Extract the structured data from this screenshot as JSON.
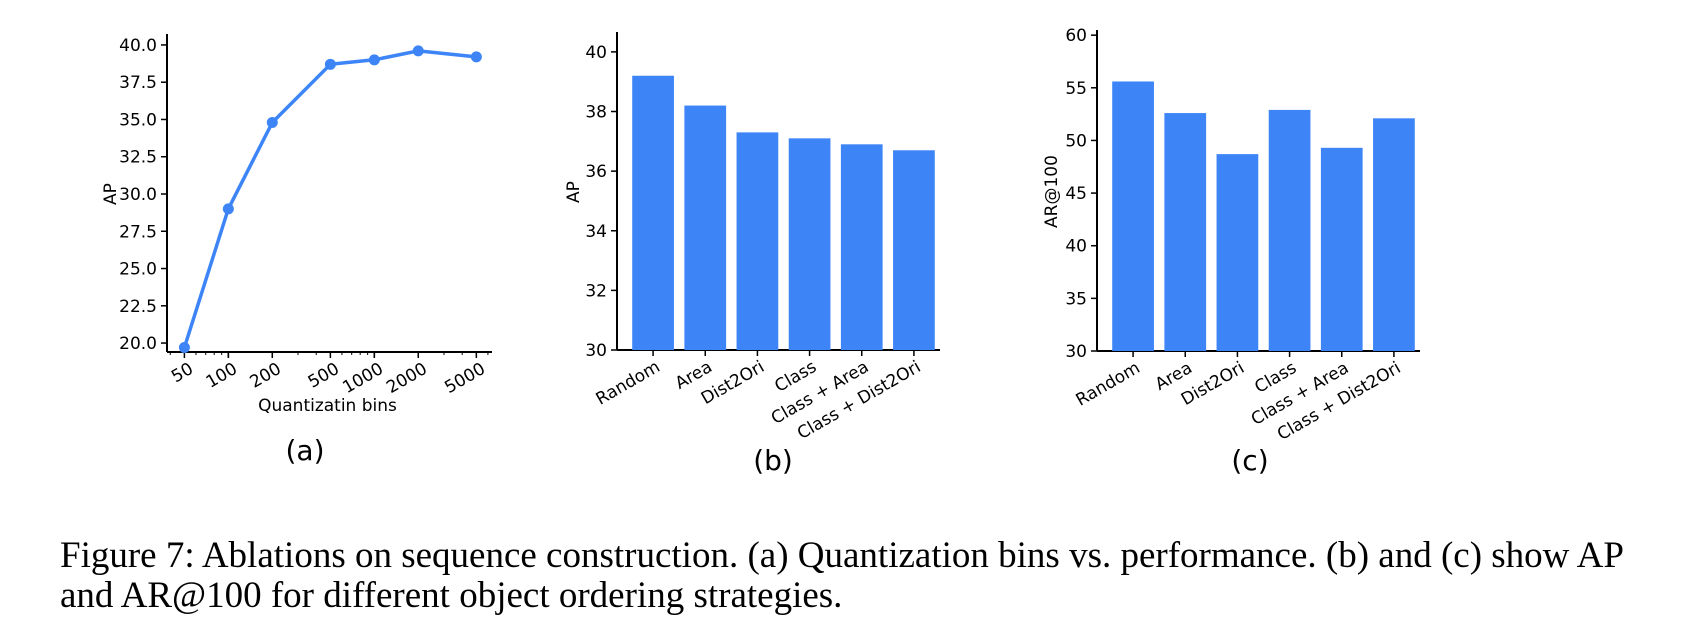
{
  "figure": {
    "caption": "Figure 7:  Ablations on sequence construction. (a) Quantization bins vs. performance. (b) and (c) show AP and AR@100 for different object ordering strategies.",
    "series_color": "#3d85f7"
  },
  "chart_data": [
    {
      "type": "line",
      "panel_label": "(a)",
      "x": [
        50,
        100,
        200,
        500,
        1000,
        2000,
        5000
      ],
      "x_tick_labels": [
        "50",
        "100",
        "200",
        "500",
        "1000",
        "2000",
        "5000"
      ],
      "x_scale": "log",
      "y": [
        19.7,
        29.0,
        34.8,
        38.7,
        39.0,
        39.6,
        39.2
      ],
      "xlabel": "Quantizatin bins",
      "ylabel": "AP",
      "ylim": [
        19.4,
        40.6
      ],
      "y_ticks": [
        20.0,
        22.5,
        25.0,
        27.5,
        30.0,
        32.5,
        35.0,
        37.5,
        40.0
      ],
      "y_tick_labels": [
        "20.0",
        "22.5",
        "25.0",
        "27.5",
        "30.0",
        "32.5",
        "35.0",
        "37.5",
        "40.0"
      ],
      "grid": false
    },
    {
      "type": "bar",
      "panel_label": "(b)",
      "categories": [
        "Random",
        "Area",
        "Dist2Ori",
        "Class",
        "Class + Area",
        "Class + Dist2Ori"
      ],
      "values": [
        39.2,
        38.2,
        37.3,
        37.1,
        36.9,
        36.7
      ],
      "xlabel": "",
      "ylabel": "AP",
      "ylim": [
        30,
        40.6
      ],
      "y_ticks": [
        30,
        32,
        34,
        36,
        38,
        40
      ],
      "y_tick_labels": [
        "30",
        "32",
        "34",
        "36",
        "38",
        "40"
      ],
      "grid": false
    },
    {
      "type": "bar",
      "panel_label": "(c)",
      "categories": [
        "Random",
        "Area",
        "Dist2Ori",
        "Class",
        "Class + Area",
        "Class + Dist2Ori"
      ],
      "values": [
        55.6,
        52.6,
        48.7,
        52.9,
        49.3,
        52.1
      ],
      "xlabel": "",
      "ylabel": "AR@100",
      "ylim": [
        30,
        60.3
      ],
      "y_ticks": [
        30,
        35,
        40,
        45,
        50,
        55,
        60
      ],
      "y_tick_labels": [
        "30",
        "35",
        "40",
        "45",
        "50",
        "55",
        "60"
      ],
      "grid": false
    }
  ]
}
